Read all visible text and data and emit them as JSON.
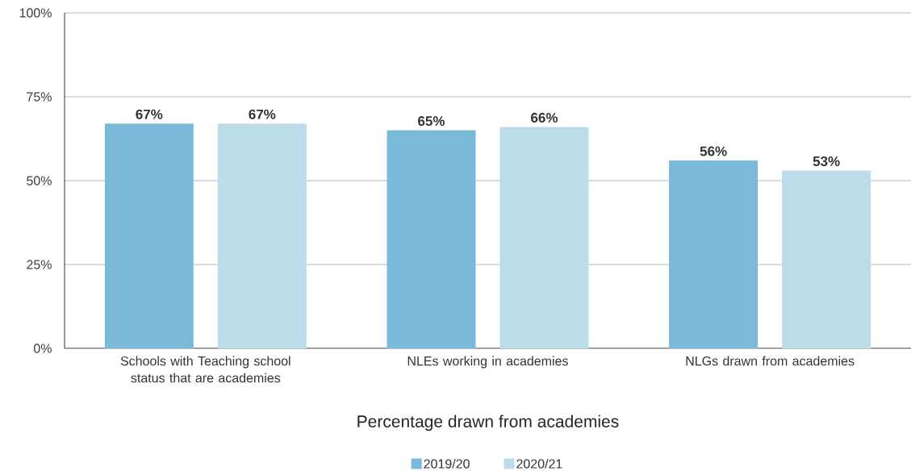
{
  "chart_data": {
    "type": "bar",
    "xlabel": "Percentage drawn from academies",
    "categories": [
      "Schools with Teaching school status that are academies",
      "NLEs working in academies",
      "NLGs drawn from academies"
    ],
    "series": [
      {
        "name": "2019/20",
        "color": "#7ab9d8",
        "values": [
          67,
          65,
          56
        ],
        "value_labels": [
          "67%",
          "65%",
          "56%"
        ]
      },
      {
        "name": "2020/21",
        "color": "#bddcea",
        "values": [
          67,
          66,
          53
        ],
        "value_labels": [
          "67%",
          "66%",
          "53%"
        ]
      }
    ],
    "ylim": [
      0,
      100
    ],
    "yticks": [
      {
        "value": 0,
        "label": "0%"
      },
      {
        "value": 25,
        "label": "25%"
      },
      {
        "value": 50,
        "label": "50%"
      },
      {
        "value": 75,
        "label": "75%"
      },
      {
        "value": 100,
        "label": "100%"
      }
    ],
    "grid": "y",
    "legend": "bottom"
  }
}
